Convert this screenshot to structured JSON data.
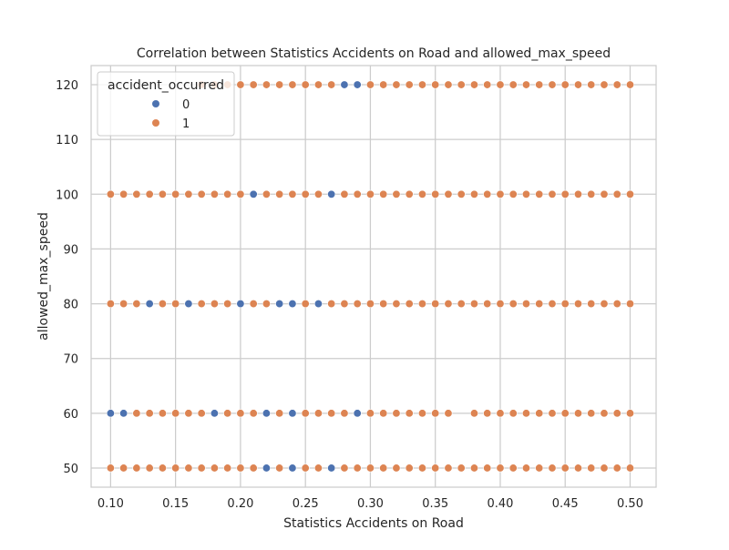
{
  "chart_data": {
    "type": "scatter",
    "title": "Correlation between Statistics Accidents on Road and allowed_max_speed",
    "xlabel": "Statistics Accidents on Road",
    "ylabel": "allowed_max_speed",
    "xlim": [
      0.085,
      0.52
    ],
    "ylim": [
      46.5,
      123.5
    ],
    "x_ticks": [
      0.1,
      0.15,
      0.2,
      0.25,
      0.3,
      0.35,
      0.4,
      0.45,
      0.5
    ],
    "x_tick_labels": [
      "0.10",
      "0.15",
      "0.20",
      "0.25",
      "0.30",
      "0.35",
      "0.40",
      "0.45",
      "0.50"
    ],
    "y_ticks": [
      50,
      60,
      70,
      80,
      90,
      100,
      110,
      120
    ],
    "y_tick_labels": [
      "50",
      "60",
      "70",
      "80",
      "90",
      "100",
      "110",
      "120"
    ],
    "grid": true,
    "legend": {
      "title": "accident_occurred",
      "placement": "top-left",
      "entries": [
        {
          "label": "0",
          "color": "#4c72b0"
        },
        {
          "label": "1",
          "color": "#dd8452"
        }
      ]
    },
    "colors": {
      "0": "#4c72b0",
      "1": "#dd8452"
    },
    "series": [
      {
        "name": "1",
        "color": "#dd8452",
        "points": [
          [
            0.17,
            120
          ],
          [
            0.18,
            120
          ],
          [
            0.19,
            120
          ],
          [
            0.2,
            120
          ],
          [
            0.21,
            120
          ],
          [
            0.22,
            120
          ],
          [
            0.23,
            120
          ],
          [
            0.24,
            120
          ],
          [
            0.25,
            120
          ],
          [
            0.26,
            120
          ],
          [
            0.27,
            120
          ],
          [
            0.3,
            120
          ],
          [
            0.31,
            120
          ],
          [
            0.32,
            120
          ],
          [
            0.33,
            120
          ],
          [
            0.34,
            120
          ],
          [
            0.35,
            120
          ],
          [
            0.36,
            120
          ],
          [
            0.37,
            120
          ],
          [
            0.38,
            120
          ],
          [
            0.39,
            120
          ],
          [
            0.4,
            120
          ],
          [
            0.41,
            120
          ],
          [
            0.42,
            120
          ],
          [
            0.43,
            120
          ],
          [
            0.44,
            120
          ],
          [
            0.45,
            120
          ],
          [
            0.46,
            120
          ],
          [
            0.47,
            120
          ],
          [
            0.48,
            120
          ],
          [
            0.49,
            120
          ],
          [
            0.5,
            120
          ],
          [
            0.1,
            100
          ],
          [
            0.11,
            100
          ],
          [
            0.12,
            100
          ],
          [
            0.13,
            100
          ],
          [
            0.14,
            100
          ],
          [
            0.15,
            100
          ],
          [
            0.16,
            100
          ],
          [
            0.17,
            100
          ],
          [
            0.18,
            100
          ],
          [
            0.19,
            100
          ],
          [
            0.2,
            100
          ],
          [
            0.22,
            100
          ],
          [
            0.23,
            100
          ],
          [
            0.24,
            100
          ],
          [
            0.25,
            100
          ],
          [
            0.26,
            100
          ],
          [
            0.28,
            100
          ],
          [
            0.29,
            100
          ],
          [
            0.3,
            100
          ],
          [
            0.31,
            100
          ],
          [
            0.32,
            100
          ],
          [
            0.33,
            100
          ],
          [
            0.34,
            100
          ],
          [
            0.35,
            100
          ],
          [
            0.36,
            100
          ],
          [
            0.37,
            100
          ],
          [
            0.38,
            100
          ],
          [
            0.39,
            100
          ],
          [
            0.4,
            100
          ],
          [
            0.41,
            100
          ],
          [
            0.42,
            100
          ],
          [
            0.43,
            100
          ],
          [
            0.44,
            100
          ],
          [
            0.45,
            100
          ],
          [
            0.46,
            100
          ],
          [
            0.47,
            100
          ],
          [
            0.48,
            100
          ],
          [
            0.49,
            100
          ],
          [
            0.5,
            100
          ],
          [
            0.1,
            80
          ],
          [
            0.11,
            80
          ],
          [
            0.12,
            80
          ],
          [
            0.14,
            80
          ],
          [
            0.15,
            80
          ],
          [
            0.17,
            80
          ],
          [
            0.18,
            80
          ],
          [
            0.19,
            80
          ],
          [
            0.21,
            80
          ],
          [
            0.22,
            80
          ],
          [
            0.25,
            80
          ],
          [
            0.27,
            80
          ],
          [
            0.28,
            80
          ],
          [
            0.29,
            80
          ],
          [
            0.3,
            80
          ],
          [
            0.31,
            80
          ],
          [
            0.32,
            80
          ],
          [
            0.33,
            80
          ],
          [
            0.34,
            80
          ],
          [
            0.35,
            80
          ],
          [
            0.36,
            80
          ],
          [
            0.37,
            80
          ],
          [
            0.38,
            80
          ],
          [
            0.39,
            80
          ],
          [
            0.4,
            80
          ],
          [
            0.41,
            80
          ],
          [
            0.42,
            80
          ],
          [
            0.43,
            80
          ],
          [
            0.44,
            80
          ],
          [
            0.45,
            80
          ],
          [
            0.46,
            80
          ],
          [
            0.47,
            80
          ],
          [
            0.48,
            80
          ],
          [
            0.49,
            80
          ],
          [
            0.5,
            80
          ],
          [
            0.12,
            60
          ],
          [
            0.13,
            60
          ],
          [
            0.14,
            60
          ],
          [
            0.15,
            60
          ],
          [
            0.16,
            60
          ],
          [
            0.17,
            60
          ],
          [
            0.19,
            60
          ],
          [
            0.2,
            60
          ],
          [
            0.21,
            60
          ],
          [
            0.23,
            60
          ],
          [
            0.25,
            60
          ],
          [
            0.26,
            60
          ],
          [
            0.27,
            60
          ],
          [
            0.28,
            60
          ],
          [
            0.3,
            60
          ],
          [
            0.31,
            60
          ],
          [
            0.32,
            60
          ],
          [
            0.33,
            60
          ],
          [
            0.34,
            60
          ],
          [
            0.35,
            60
          ],
          [
            0.36,
            60
          ],
          [
            0.38,
            60
          ],
          [
            0.39,
            60
          ],
          [
            0.4,
            60
          ],
          [
            0.41,
            60
          ],
          [
            0.42,
            60
          ],
          [
            0.43,
            60
          ],
          [
            0.44,
            60
          ],
          [
            0.45,
            60
          ],
          [
            0.46,
            60
          ],
          [
            0.47,
            60
          ],
          [
            0.48,
            60
          ],
          [
            0.49,
            60
          ],
          [
            0.5,
            60
          ],
          [
            0.1,
            50
          ],
          [
            0.11,
            50
          ],
          [
            0.12,
            50
          ],
          [
            0.13,
            50
          ],
          [
            0.14,
            50
          ],
          [
            0.15,
            50
          ],
          [
            0.16,
            50
          ],
          [
            0.17,
            50
          ],
          [
            0.18,
            50
          ],
          [
            0.19,
            50
          ],
          [
            0.2,
            50
          ],
          [
            0.21,
            50
          ],
          [
            0.23,
            50
          ],
          [
            0.25,
            50
          ],
          [
            0.26,
            50
          ],
          [
            0.28,
            50
          ],
          [
            0.29,
            50
          ],
          [
            0.3,
            50
          ],
          [
            0.31,
            50
          ],
          [
            0.32,
            50
          ],
          [
            0.33,
            50
          ],
          [
            0.34,
            50
          ],
          [
            0.35,
            50
          ],
          [
            0.36,
            50
          ],
          [
            0.37,
            50
          ],
          [
            0.38,
            50
          ],
          [
            0.39,
            50
          ],
          [
            0.4,
            50
          ],
          [
            0.41,
            50
          ],
          [
            0.42,
            50
          ],
          [
            0.43,
            50
          ],
          [
            0.44,
            50
          ],
          [
            0.45,
            50
          ],
          [
            0.46,
            50
          ],
          [
            0.47,
            50
          ],
          [
            0.48,
            50
          ],
          [
            0.49,
            50
          ],
          [
            0.5,
            50
          ]
        ]
      },
      {
        "name": "0",
        "color": "#4c72b0",
        "points": [
          [
            0.28,
            120
          ],
          [
            0.29,
            120
          ],
          [
            0.21,
            100
          ],
          [
            0.27,
            100
          ],
          [
            0.13,
            80
          ],
          [
            0.16,
            80
          ],
          [
            0.2,
            80
          ],
          [
            0.23,
            80
          ],
          [
            0.24,
            80
          ],
          [
            0.26,
            80
          ],
          [
            0.1,
            60
          ],
          [
            0.11,
            60
          ],
          [
            0.18,
            60
          ],
          [
            0.22,
            60
          ],
          [
            0.24,
            60
          ],
          [
            0.29,
            60
          ],
          [
            0.22,
            50
          ],
          [
            0.24,
            50
          ],
          [
            0.27,
            50
          ]
        ]
      }
    ]
  }
}
